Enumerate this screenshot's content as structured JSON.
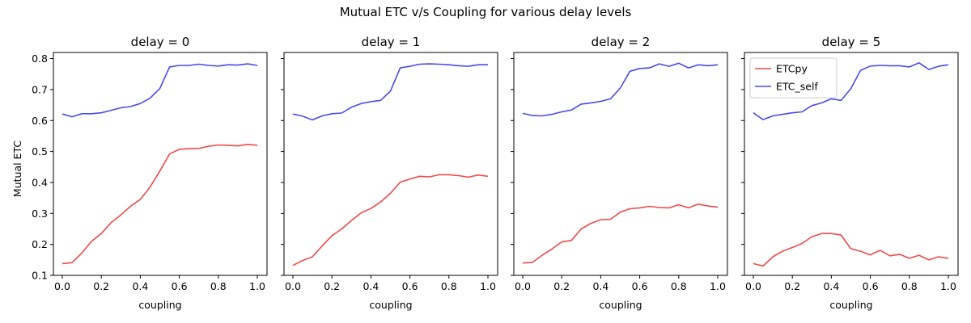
{
  "suptitle": "Mutual ETC v/s Coupling for various delay levels",
  "ylabel": "Mutual ETC",
  "xlabel": "coupling",
  "colors": {
    "ETCpy": "#f04a4a",
    "ETC_self": "#4a4af0"
  },
  "chart_data": [
    {
      "type": "line",
      "title": "delay = 0",
      "xlabel": "coupling",
      "ylabel": "Mutual ETC",
      "xlim": [
        0,
        1
      ],
      "ylim": [
        0.1,
        0.8
      ],
      "xticks": [
        "0.0",
        "0.2",
        "0.4",
        "0.6",
        "0.8",
        "1.0"
      ],
      "yticks": [
        "0.1",
        "0.2",
        "0.3",
        "0.4",
        "0.5",
        "0.6",
        "0.7",
        "0.8"
      ],
      "x": [
        0,
        0.05,
        0.1,
        0.15,
        0.2,
        0.25,
        0.3,
        0.35,
        0.4,
        0.45,
        0.5,
        0.55,
        0.6,
        0.65,
        0.7,
        0.75,
        0.8,
        0.85,
        0.9,
        0.95,
        1.0
      ],
      "series": [
        {
          "name": "ETCpy",
          "values": [
            0.138,
            0.141,
            0.172,
            0.21,
            0.235,
            0.27,
            0.295,
            0.323,
            0.345,
            0.385,
            0.437,
            0.492,
            0.507,
            0.509,
            0.51,
            0.517,
            0.521,
            0.52,
            0.518,
            0.523,
            0.52
          ]
        },
        {
          "name": "ETC_self",
          "values": [
            0.621,
            0.612,
            0.622,
            0.622,
            0.625,
            0.633,
            0.641,
            0.645,
            0.655,
            0.672,
            0.703,
            0.773,
            0.778,
            0.778,
            0.782,
            0.778,
            0.776,
            0.78,
            0.779,
            0.783,
            0.778
          ]
        }
      ],
      "legend": false
    },
    {
      "type": "line",
      "title": "delay = 1",
      "xlabel": "coupling",
      "xlim": [
        0,
        1
      ],
      "ylim": [
        0.1,
        0.8
      ],
      "xticks": [
        "0.0",
        "0.2",
        "0.4",
        "0.6",
        "0.8",
        "1.0"
      ],
      "x": [
        0,
        0.05,
        0.1,
        0.15,
        0.2,
        0.25,
        0.3,
        0.35,
        0.4,
        0.45,
        0.5,
        0.55,
        0.6,
        0.65,
        0.7,
        0.75,
        0.8,
        0.85,
        0.9,
        0.95,
        1.0
      ],
      "series": [
        {
          "name": "ETCpy",
          "values": [
            0.132,
            0.148,
            0.16,
            0.195,
            0.228,
            0.25,
            0.277,
            0.302,
            0.316,
            0.337,
            0.365,
            0.401,
            0.411,
            0.42,
            0.418,
            0.425,
            0.425,
            0.422,
            0.417,
            0.424,
            0.42
          ]
        },
        {
          "name": "ETC_self",
          "values": [
            0.621,
            0.614,
            0.602,
            0.615,
            0.622,
            0.624,
            0.643,
            0.655,
            0.661,
            0.665,
            0.695,
            0.77,
            0.775,
            0.782,
            0.783,
            0.782,
            0.78,
            0.777,
            0.775,
            0.78,
            0.78
          ]
        }
      ],
      "legend": false
    },
    {
      "type": "line",
      "title": "delay = 2",
      "xlabel": "coupling",
      "xlim": [
        0,
        1
      ],
      "ylim": [
        0.1,
        0.8
      ],
      "xticks": [
        "0.0",
        "0.2",
        "0.4",
        "0.6",
        "0.8",
        "1.0"
      ],
      "x": [
        0,
        0.05,
        0.1,
        0.15,
        0.2,
        0.25,
        0.3,
        0.35,
        0.4,
        0.45,
        0.5,
        0.55,
        0.6,
        0.65,
        0.7,
        0.75,
        0.8,
        0.85,
        0.9,
        0.95,
        1.0
      ],
      "series": [
        {
          "name": "ETCpy",
          "values": [
            0.14,
            0.142,
            0.165,
            0.185,
            0.208,
            0.213,
            0.25,
            0.268,
            0.28,
            0.281,
            0.304,
            0.315,
            0.318,
            0.323,
            0.319,
            0.318,
            0.328,
            0.318,
            0.33,
            0.324,
            0.32
          ]
        },
        {
          "name": "ETC_self",
          "values": [
            0.623,
            0.616,
            0.615,
            0.62,
            0.628,
            0.634,
            0.653,
            0.657,
            0.662,
            0.67,
            0.705,
            0.759,
            0.768,
            0.77,
            0.783,
            0.775,
            0.785,
            0.77,
            0.78,
            0.777,
            0.78
          ]
        }
      ],
      "legend": false
    },
    {
      "type": "line",
      "title": "delay = 5",
      "xlabel": "coupling",
      "xlim": [
        0,
        1
      ],
      "ylim": [
        0.1,
        0.8
      ],
      "xticks": [
        "0.0",
        "0.2",
        "0.4",
        "0.6",
        "0.8",
        "1.0"
      ],
      "x": [
        0,
        0.05,
        0.1,
        0.15,
        0.2,
        0.25,
        0.3,
        0.35,
        0.4,
        0.45,
        0.5,
        0.55,
        0.6,
        0.65,
        0.7,
        0.75,
        0.8,
        0.85,
        0.9,
        0.95,
        1.0
      ],
      "series": [
        {
          "name": "ETCpy",
          "values": [
            0.138,
            0.13,
            0.16,
            0.178,
            0.19,
            0.203,
            0.225,
            0.235,
            0.235,
            0.23,
            0.186,
            0.178,
            0.166,
            0.181,
            0.163,
            0.168,
            0.155,
            0.165,
            0.15,
            0.16,
            0.155
          ]
        },
        {
          "name": "ETC_self",
          "values": [
            0.625,
            0.603,
            0.615,
            0.62,
            0.625,
            0.628,
            0.648,
            0.657,
            0.67,
            0.665,
            0.703,
            0.762,
            0.776,
            0.778,
            0.777,
            0.777,
            0.773,
            0.786,
            0.765,
            0.775,
            0.78
          ]
        }
      ],
      "legend": true,
      "legend_position": "upper-left"
    }
  ]
}
